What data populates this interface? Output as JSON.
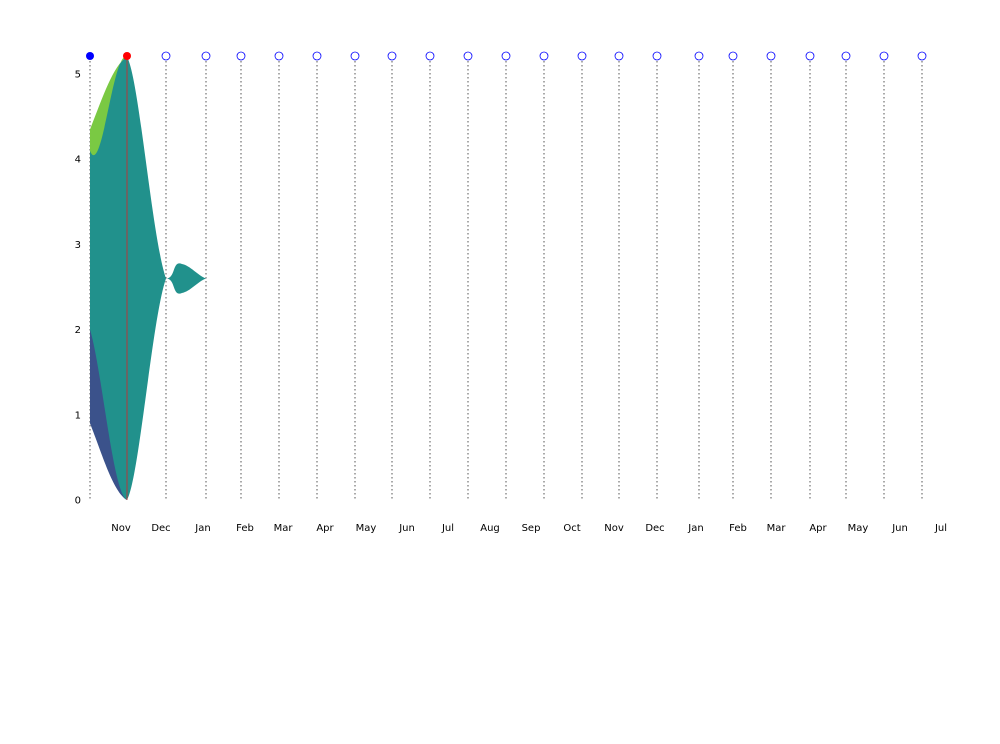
{
  "chart_data": {
    "type": "area",
    "x_tick_labels": [
      "Nov",
      "Dec",
      "Jan",
      "Feb",
      "Mar",
      "Apr",
      "May",
      "Jun",
      "Jul",
      "Aug",
      "Sep",
      "Oct",
      "Nov",
      "Dec",
      "Jan",
      "Feb",
      "Mar",
      "Apr",
      "May",
      "Jun",
      "Jul"
    ],
    "y_ticks": [
      0,
      1,
      2,
      3,
      4,
      5
    ],
    "ylim": [
      0,
      5.2
    ],
    "grid": "vertical dotted lines at each timeline marker",
    "markers": [
      {
        "state": "past"
      },
      {
        "state": "current"
      },
      {
        "state": "future"
      },
      {
        "state": "future"
      },
      {
        "state": "future"
      },
      {
        "state": "future"
      },
      {
        "state": "future"
      },
      {
        "state": "future"
      },
      {
        "state": "future"
      },
      {
        "state": "future"
      },
      {
        "state": "future"
      },
      {
        "state": "future"
      },
      {
        "state": "future"
      },
      {
        "state": "future"
      },
      {
        "state": "future"
      },
      {
        "state": "future"
      },
      {
        "state": "future"
      },
      {
        "state": "future"
      },
      {
        "state": "future"
      },
      {
        "state": "future"
      },
      {
        "state": "future"
      },
      {
        "state": "future"
      },
      {
        "state": "future"
      }
    ],
    "current_marker_index": 1,
    "series": [
      {
        "color": "#3b528b",
        "bottom": [
          0.9,
          0.0,
          null,
          null
        ],
        "top": [
          2.0,
          5.2,
          null,
          null
        ]
      },
      {
        "color": "#21918c",
        "bottom": [
          2.0,
          0.0,
          2.6,
          2.6
        ],
        "top": [
          4.1,
          5.2,
          2.6,
          2.6
        ]
      },
      {
        "color": "#7ac943",
        "bottom": [
          4.1,
          5.2,
          null,
          null
        ],
        "top": [
          4.35,
          5.2,
          null,
          null
        ]
      }
    ],
    "bubble": {
      "from_marker": 2,
      "to_marker": 3,
      "center": 2.6,
      "half_height": 0.17
    },
    "colors": {
      "past_marker": "#0000ff",
      "current_marker": "#ff0000",
      "future_marker_stroke": "#0000ff",
      "current_line": "#d62728"
    }
  }
}
